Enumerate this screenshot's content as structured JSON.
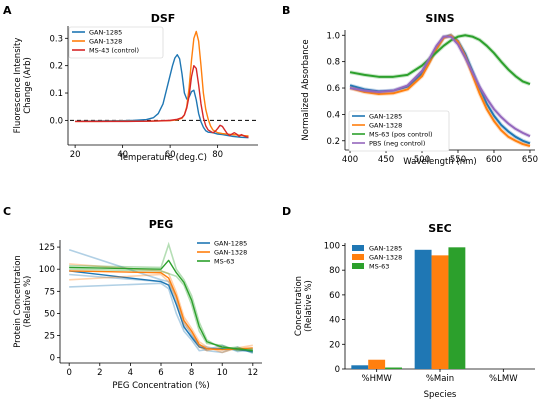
{
  "colors": {
    "blue": "#1f77b4",
    "orange": "#ff7f0e",
    "green": "#2ca02c",
    "red": "#d62728",
    "purple": "#9467bd"
  },
  "chart_data": [
    {
      "id": "dsf",
      "panel": "A",
      "type": "line",
      "title": "DSF",
      "xlabel": "Temperature (deg.C)",
      "ylabel": "Fluorescence Intensity Change (Arb)",
      "xlim": [
        17,
        97
      ],
      "ylim": [
        -0.09,
        0.345
      ],
      "xticks": [
        20,
        40,
        60,
        80
      ],
      "yticks": [
        0.0,
        0.1,
        0.2,
        0.3
      ],
      "legend": "top-left",
      "grid": false,
      "reference_line": {
        "y": 0,
        "style": "dashed"
      },
      "series": [
        {
          "name": "GAN-1285",
          "color": "#1f77b4",
          "x": [
            20,
            30,
            40,
            45,
            50,
            53,
            55,
            57,
            59,
            61,
            62,
            63,
            64,
            65,
            66,
            67,
            68,
            69,
            70,
            71,
            72,
            73,
            74,
            75,
            76,
            78,
            80,
            82,
            84,
            86,
            88,
            90,
            93
          ],
          "y": [
            -0.003,
            -0.002,
            -0.001,
            0,
            0.003,
            0.01,
            0.025,
            0.06,
            0.13,
            0.2,
            0.228,
            0.24,
            0.225,
            0.17,
            0.1,
            0.078,
            0.085,
            0.105,
            0.11,
            0.075,
            0.025,
            -0.005,
            -0.025,
            -0.038,
            -0.043,
            -0.045,
            -0.05,
            -0.052,
            -0.055,
            -0.058,
            -0.06,
            -0.062,
            -0.063
          ]
        },
        {
          "name": "GAN-1328",
          "color": "#ff7f0e",
          "x": [
            20,
            30,
            40,
            50,
            55,
            60,
            63,
            65,
            66,
            67,
            68,
            69,
            70,
            71,
            72,
            73,
            74,
            75,
            76,
            77,
            78,
            80,
            82,
            84,
            86,
            88,
            90,
            93
          ],
          "y": [
            -0.004,
            -0.004,
            -0.003,
            -0.003,
            -0.002,
            -0.001,
            0.002,
            0.008,
            0.02,
            0.05,
            0.12,
            0.22,
            0.3,
            0.325,
            0.29,
            0.2,
            0.1,
            0.04,
            0.005,
            -0.02,
            -0.035,
            -0.045,
            -0.048,
            -0.05,
            -0.052,
            -0.053,
            -0.055,
            -0.057
          ]
        },
        {
          "name": "MS-43 (control)",
          "color": "#d62728",
          "x": [
            20,
            30,
            40,
            50,
            55,
            60,
            63,
            65,
            66,
            67,
            68,
            69,
            70,
            71,
            72,
            73,
            74,
            75,
            76,
            77,
            78,
            79,
            80,
            81,
            82,
            83,
            84,
            85,
            86,
            87,
            88,
            89,
            90,
            92,
            93
          ],
          "y": [
            -0.004,
            -0.004,
            -0.004,
            -0.003,
            -0.002,
            0.0,
            0.004,
            0.01,
            0.02,
            0.045,
            0.09,
            0.16,
            0.2,
            0.19,
            0.13,
            0.06,
            0.01,
            -0.02,
            -0.035,
            -0.04,
            -0.045,
            -0.04,
            -0.03,
            -0.018,
            -0.022,
            -0.035,
            -0.048,
            -0.055,
            -0.05,
            -0.045,
            -0.05,
            -0.058,
            -0.052,
            -0.06,
            -0.062
          ]
        }
      ]
    },
    {
      "id": "sins",
      "panel": "B",
      "type": "line",
      "title": "SINS",
      "xlabel": "Wavelength (nm)",
      "ylabel": "Normalized Absorbance",
      "xlim": [
        393,
        657
      ],
      "ylim": [
        0.13,
        1.04
      ],
      "xticks": [
        400,
        450,
        500,
        550,
        600,
        650
      ],
      "yticks": [
        0.2,
        0.4,
        0.6,
        0.8,
        1.0
      ],
      "legend": "bottom-left",
      "grid": false,
      "series": [
        {
          "name": "GAN-1285",
          "color": "#1f77b4",
          "x": [
            400,
            420,
            440,
            460,
            480,
            500,
            510,
            520,
            530,
            540,
            550,
            560,
            570,
            580,
            590,
            600,
            610,
            620,
            630,
            640,
            650
          ],
          "y": [
            0.62,
            0.59,
            0.575,
            0.58,
            0.61,
            0.71,
            0.8,
            0.9,
            0.985,
            1.0,
            0.955,
            0.86,
            0.73,
            0.6,
            0.48,
            0.39,
            0.32,
            0.27,
            0.23,
            0.2,
            0.18
          ]
        },
        {
          "name": "GAN-1328",
          "color": "#ff7f0e",
          "x": [
            400,
            420,
            440,
            460,
            480,
            500,
            510,
            520,
            530,
            540,
            550,
            560,
            570,
            580,
            590,
            600,
            610,
            620,
            630,
            640,
            650
          ],
          "y": [
            0.6,
            0.57,
            0.555,
            0.56,
            0.59,
            0.69,
            0.79,
            0.895,
            0.98,
            0.998,
            0.95,
            0.84,
            0.7,
            0.56,
            0.44,
            0.35,
            0.28,
            0.23,
            0.2,
            0.175,
            0.16
          ]
        },
        {
          "name": "MS-63 (pos control)",
          "color": "#2ca02c",
          "x": [
            400,
            420,
            440,
            460,
            480,
            500,
            510,
            520,
            530,
            540,
            550,
            560,
            570,
            580,
            590,
            600,
            610,
            620,
            630,
            640,
            650
          ],
          "y": [
            0.72,
            0.7,
            0.685,
            0.685,
            0.7,
            0.77,
            0.82,
            0.87,
            0.92,
            0.96,
            0.99,
            1.0,
            0.99,
            0.965,
            0.92,
            0.865,
            0.8,
            0.74,
            0.69,
            0.65,
            0.63
          ]
        },
        {
          "name": "PBS (neg control)",
          "color": "#9467bd",
          "x": [
            400,
            420,
            440,
            460,
            480,
            500,
            510,
            520,
            530,
            540,
            550,
            560,
            570,
            580,
            590,
            600,
            610,
            620,
            630,
            640,
            650
          ],
          "y": [
            0.6,
            0.58,
            0.57,
            0.58,
            0.62,
            0.73,
            0.82,
            0.92,
            0.99,
            0.99,
            0.93,
            0.83,
            0.72,
            0.61,
            0.52,
            0.44,
            0.38,
            0.33,
            0.29,
            0.26,
            0.235
          ]
        }
      ]
    },
    {
      "id": "peg",
      "panel": "C",
      "type": "line",
      "title": "PEG",
      "xlabel": "PEG Concentration (%)",
      "ylabel": "Protein Concentration (Relative %)",
      "xlim": [
        -0.6,
        12.6
      ],
      "ylim": [
        -6,
        133
      ],
      "xticks": [
        0,
        2,
        4,
        6,
        8,
        10,
        12
      ],
      "yticks": [
        0,
        25,
        50,
        75,
        100,
        125
      ],
      "legend": "top-right",
      "grid": false,
      "series": [
        {
          "name": "GAN-1285",
          "color": "#1f77b4",
          "x": [
            0,
            6,
            6.5,
            7,
            7.5,
            8,
            8.5,
            9,
            10,
            11,
            12
          ],
          "y": [
            98,
            86,
            82,
            60,
            35,
            23,
            12,
            10,
            10,
            9,
            7
          ],
          "replicates": [
            {
              "x": [
                0,
                6,
                6.5,
                7,
                7.5,
                8,
                8.5,
                9,
                10,
                11,
                12
              ],
              "y": [
                122,
                88,
                86,
                68,
                40,
                26,
                14,
                12,
                9,
                10,
                6
              ]
            },
            {
              "x": [
                0,
                6,
                6.5,
                7,
                7.5,
                8,
                8.5,
                9,
                10,
                11,
                12
              ],
              "y": [
                80,
                84,
                78,
                50,
                30,
                20,
                8,
                9,
                14,
                7,
                9
              ]
            },
            {
              "x": [
                0,
                6,
                6.5,
                7,
                7.5,
                8,
                8.5,
                9,
                10,
                11,
                12
              ],
              "y": [
                94,
                86,
                82,
                62,
                34,
                24,
                14,
                8,
                6,
                12,
                5
              ]
            }
          ]
        },
        {
          "name": "GAN-1328",
          "color": "#ff7f0e",
          "x": [
            0,
            6,
            6.5,
            7,
            7.5,
            8,
            8.5,
            9,
            10,
            11,
            12
          ],
          "y": [
            98,
            96,
            90,
            70,
            42,
            30,
            15,
            10,
            9,
            10,
            11
          ],
          "replicates": [
            {
              "x": [
                0,
                6,
                6.5,
                7,
                7.5,
                8,
                8.5,
                9,
                10,
                11,
                12
              ],
              "y": [
                106,
                98,
                95,
                74,
                46,
                33,
                18,
                12,
                6,
                11,
                14
              ]
            },
            {
              "x": [
                0,
                6,
                6.5,
                7,
                7.5,
                8,
                8.5,
                9,
                10,
                11,
                12
              ],
              "y": [
                88,
                94,
                86,
                66,
                38,
                28,
                12,
                8,
                12,
                9,
                9
              ]
            }
          ]
        },
        {
          "name": "MS-63",
          "color": "#2ca02c",
          "x": [
            0,
            6,
            6.5,
            7,
            7.5,
            8,
            8.5,
            9,
            10,
            11,
            12
          ],
          "y": [
            102,
            100,
            110,
            96,
            85,
            65,
            35,
            18,
            12,
            10,
            8
          ],
          "replicates": [
            {
              "x": [
                0,
                6,
                6.5,
                7,
                7.5,
                8,
                8.5,
                9,
                10,
                11,
                12
              ],
              "y": [
                104,
                102,
                128,
                100,
                88,
                70,
                40,
                20,
                10,
                12,
                6
              ]
            },
            {
              "x": [
                0,
                6,
                6.5,
                7,
                7.5,
                8,
                8.5,
                9,
                10,
                11,
                12
              ],
              "y": [
                100,
                98,
                95,
                92,
                82,
                60,
                30,
                16,
                14,
                8,
                10
              ]
            }
          ]
        }
      ]
    },
    {
      "id": "sec",
      "panel": "D",
      "type": "bar",
      "title": "SEC",
      "xlabel": "Species",
      "ylabel": "Concentration (Relative %)",
      "categories": [
        "%HMW",
        "%Main",
        "%LMW"
      ],
      "ylim": [
        0,
        102
      ],
      "yticks": [
        0,
        20,
        40,
        60,
        80,
        100
      ],
      "legend": "top-left",
      "grid": false,
      "series": [
        {
          "name": "GAN-1285",
          "color": "#1f77b4",
          "values": [
            3,
            96.5,
            0
          ]
        },
        {
          "name": "GAN-1328",
          "color": "#ff7f0e",
          "values": [
            7.5,
            92,
            0
          ]
        },
        {
          "name": "MS-63",
          "color": "#2ca02c",
          "values": [
            1.2,
            98.5,
            0
          ]
        }
      ]
    }
  ]
}
